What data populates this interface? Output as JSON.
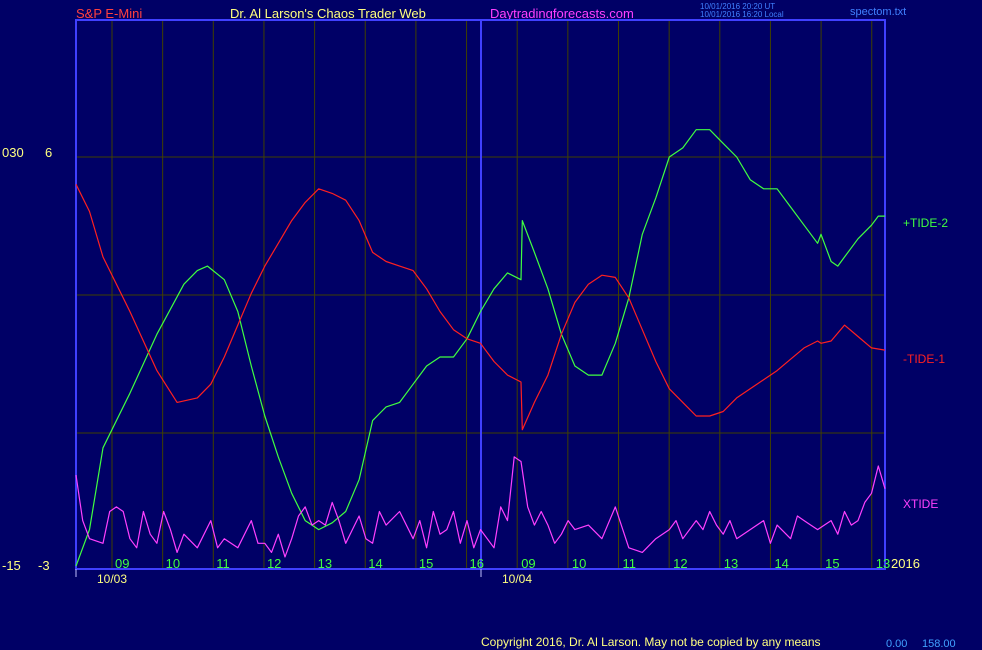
{
  "header": {
    "symbol": "S&P E-Mini",
    "title": "Dr. Al Larson's Chaos Trader Web",
    "site": "Daytradingforecasts.com",
    "update_line1": "10/01/2016 20:20 UT",
    "update_line2": "10/01/2016 16:20 Local",
    "filename": "spectom.txt"
  },
  "footer": {
    "copyright": "Copyright 2016, Dr. Al Larson. May not be copied by any means",
    "right_small": "0.00",
    "right_value": "158.00"
  },
  "colors": {
    "background": "#000066",
    "axis": "#4040ff",
    "grid": "#404000",
    "tide_plus2": "#40ff40",
    "tide_minus1": "#ff2020",
    "xtide": "#ff40ff",
    "tick_labels": "#40ff40",
    "axis_text": "#ffff80"
  },
  "chart_data": {
    "type": "line",
    "y_axis_left": {
      "labels": [
        {
          "outer": "030",
          "inner": "6"
        },
        {
          "outer": "-15",
          "inner": "-3"
        }
      ]
    },
    "x_axis": {
      "hour_ticks": [
        "09",
        "10",
        "11",
        "12",
        "13",
        "14",
        "15",
        "16",
        "09",
        "10",
        "11",
        "12",
        "13",
        "14",
        "15",
        "13"
      ],
      "date_labels": [
        "10/03",
        "10/04"
      ],
      "year_label": "2016"
    },
    "grid": true,
    "series": [
      {
        "name": "+TIDE-2",
        "color": "#40ff40",
        "points": [
          [
            0,
            -3
          ],
          [
            2,
            -2.2
          ],
          [
            4,
            -0.4
          ],
          [
            8,
            0.8
          ],
          [
            12,
            2.1
          ],
          [
            16,
            3.2
          ],
          [
            18,
            3.5
          ],
          [
            19.5,
            3.6
          ],
          [
            22,
            3.3
          ],
          [
            24,
            2.6
          ],
          [
            26,
            1.4
          ],
          [
            28,
            0.3
          ],
          [
            30,
            -0.6
          ],
          [
            32,
            -1.4
          ],
          [
            34,
            -2.0
          ],
          [
            36,
            -2.2
          ],
          [
            38,
            -2.05
          ],
          [
            40,
            -1.8
          ],
          [
            42,
            -1.1
          ],
          [
            44,
            0.2
          ],
          [
            46,
            0.5
          ],
          [
            48,
            0.6
          ],
          [
            50,
            1.0
          ],
          [
            52,
            1.4
          ],
          [
            54,
            1.6
          ],
          [
            56,
            1.6
          ],
          [
            58,
            2.0
          ],
          [
            60,
            2.6
          ],
          [
            62,
            3.1
          ],
          [
            64,
            3.45
          ],
          [
            66,
            3.3
          ],
          [
            66.2,
            4.6
          ],
          [
            68,
            3.9
          ],
          [
            70,
            3.1
          ],
          [
            72,
            2.1
          ],
          [
            74,
            1.4
          ],
          [
            76,
            1.2
          ],
          [
            78,
            1.2
          ],
          [
            80,
            1.9
          ],
          [
            82,
            2.9
          ],
          [
            84,
            4.3
          ],
          [
            86,
            5.1
          ],
          [
            88,
            6.0
          ],
          [
            90,
            6.2
          ],
          [
            92,
            6.6
          ],
          [
            94,
            6.6
          ],
          [
            96,
            6.3
          ],
          [
            98,
            6.0
          ],
          [
            100,
            5.5
          ],
          [
            102,
            5.3
          ],
          [
            104,
            5.3
          ],
          [
            106,
            4.9
          ],
          [
            108,
            4.5
          ],
          [
            110,
            4.1
          ],
          [
            110.5,
            4.3
          ],
          [
            112,
            3.7
          ],
          [
            113,
            3.6
          ],
          [
            114,
            3.8
          ],
          [
            116,
            4.2
          ],
          [
            118,
            4.5
          ],
          [
            119,
            4.7
          ],
          [
            120,
            4.7
          ]
        ]
      },
      {
        "name": "-TIDE-1",
        "color": "#ff2020",
        "points": [
          [
            0,
            5.4
          ],
          [
            2,
            4.8
          ],
          [
            4,
            3.8
          ],
          [
            8,
            2.6
          ],
          [
            12,
            1.3
          ],
          [
            15,
            0.6
          ],
          [
            18,
            0.7
          ],
          [
            20,
            1.0
          ],
          [
            22,
            1.6
          ],
          [
            24,
            2.3
          ],
          [
            26,
            3.0
          ],
          [
            28,
            3.6
          ],
          [
            30,
            4.1
          ],
          [
            32,
            4.6
          ],
          [
            34,
            5.0
          ],
          [
            36,
            5.3
          ],
          [
            38,
            5.2
          ],
          [
            40,
            5.05
          ],
          [
            42,
            4.6
          ],
          [
            44,
            3.9
          ],
          [
            46,
            3.7
          ],
          [
            48,
            3.6
          ],
          [
            50,
            3.5
          ],
          [
            52,
            3.1
          ],
          [
            54,
            2.6
          ],
          [
            56,
            2.2
          ],
          [
            58,
            2.0
          ],
          [
            60,
            1.9
          ],
          [
            62,
            1.5
          ],
          [
            64,
            1.2
          ],
          [
            66,
            1.05
          ],
          [
            66.2,
            0.0
          ],
          [
            68,
            0.6
          ],
          [
            70,
            1.2
          ],
          [
            72,
            2.1
          ],
          [
            74,
            2.8
          ],
          [
            76,
            3.2
          ],
          [
            78,
            3.4
          ],
          [
            80,
            3.35
          ],
          [
            82,
            2.9
          ],
          [
            84,
            2.2
          ],
          [
            86,
            1.5
          ],
          [
            88,
            0.9
          ],
          [
            90,
            0.6
          ],
          [
            92,
            0.3
          ],
          [
            94,
            0.3
          ],
          [
            96,
            0.4
          ],
          [
            98,
            0.7
          ],
          [
            100,
            0.9
          ],
          [
            102,
            1.1
          ],
          [
            104,
            1.3
          ],
          [
            106,
            1.55
          ],
          [
            108,
            1.8
          ],
          [
            110,
            1.95
          ],
          [
            110.5,
            1.9
          ],
          [
            112,
            1.95
          ],
          [
            114,
            2.3
          ],
          [
            116,
            2.05
          ],
          [
            118,
            1.8
          ],
          [
            120,
            1.75
          ]
        ]
      },
      {
        "name": "XTIDE",
        "color": "#ff40ff",
        "points": [
          [
            0,
            -1.0
          ],
          [
            1,
            -2.0
          ],
          [
            2,
            -2.4
          ],
          [
            4,
            -2.5
          ],
          [
            5,
            -1.8
          ],
          [
            6,
            -1.7
          ],
          [
            7,
            -1.8
          ],
          [
            8,
            -2.4
          ],
          [
            9,
            -2.6
          ],
          [
            10,
            -1.8
          ],
          [
            11,
            -2.3
          ],
          [
            12,
            -2.5
          ],
          [
            13,
            -1.8
          ],
          [
            14,
            -2.2
          ],
          [
            15,
            -2.7
          ],
          [
            16,
            -2.3
          ],
          [
            18,
            -2.6
          ],
          [
            20,
            -2.0
          ],
          [
            21,
            -2.6
          ],
          [
            22,
            -2.4
          ],
          [
            24,
            -2.6
          ],
          [
            26,
            -2.0
          ],
          [
            27,
            -2.5
          ],
          [
            28,
            -2.5
          ],
          [
            29,
            -2.7
          ],
          [
            30,
            -2.3
          ],
          [
            31,
            -2.8
          ],
          [
            32,
            -2.4
          ],
          [
            33,
            -1.9
          ],
          [
            34,
            -1.7
          ],
          [
            35,
            -2.1
          ],
          [
            36,
            -2.0
          ],
          [
            37,
            -2.1
          ],
          [
            38,
            -1.6
          ],
          [
            39,
            -2.0
          ],
          [
            40,
            -2.5
          ],
          [
            41,
            -2.2
          ],
          [
            42,
            -1.9
          ],
          [
            43,
            -2.4
          ],
          [
            44,
            -2.5
          ],
          [
            45,
            -1.8
          ],
          [
            46,
            -2.1
          ],
          [
            48,
            -1.8
          ],
          [
            50,
            -2.4
          ],
          [
            51,
            -2.0
          ],
          [
            52,
            -2.6
          ],
          [
            53,
            -1.8
          ],
          [
            54,
            -2.3
          ],
          [
            55,
            -2.2
          ],
          [
            56,
            -1.8
          ],
          [
            57,
            -2.5
          ],
          [
            58,
            -2.0
          ],
          [
            59,
            -2.6
          ],
          [
            60,
            -2.2
          ],
          [
            62,
            -2.6
          ],
          [
            63,
            -1.7
          ],
          [
            64,
            -2.0
          ],
          [
            65,
            -0.6
          ],
          [
            66,
            -0.7
          ],
          [
            67,
            -1.7
          ],
          [
            68,
            -2.1
          ],
          [
            69,
            -1.8
          ],
          [
            70,
            -2.1
          ],
          [
            71,
            -2.5
          ],
          [
            72,
            -2.3
          ],
          [
            73,
            -2.0
          ],
          [
            74,
            -2.2
          ],
          [
            76,
            -2.1
          ],
          [
            78,
            -2.4
          ],
          [
            80,
            -1.7
          ],
          [
            82,
            -2.6
          ],
          [
            84,
            -2.7
          ],
          [
            86,
            -2.4
          ],
          [
            88,
            -2.2
          ],
          [
            89,
            -2.0
          ],
          [
            90,
            -2.4
          ],
          [
            92,
            -2.0
          ],
          [
            93,
            -2.2
          ],
          [
            94,
            -1.8
          ],
          [
            95,
            -2.1
          ],
          [
            96,
            -2.3
          ],
          [
            97,
            -2.0
          ],
          [
            98,
            -2.4
          ],
          [
            100,
            -2.2
          ],
          [
            102,
            -2.0
          ],
          [
            103,
            -2.5
          ],
          [
            104,
            -2.1
          ],
          [
            106,
            -2.4
          ],
          [
            107,
            -1.9
          ],
          [
            108,
            -2.0
          ],
          [
            109,
            -2.1
          ],
          [
            110,
            -2.2
          ],
          [
            111,
            -2.1
          ],
          [
            112,
            -2.0
          ],
          [
            113,
            -2.3
          ],
          [
            114,
            -1.8
          ],
          [
            115,
            -2.1
          ],
          [
            116,
            -2.0
          ],
          [
            117,
            -1.6
          ],
          [
            118,
            -1.4
          ],
          [
            119,
            -0.8
          ],
          [
            120,
            -1.3
          ]
        ]
      }
    ]
  }
}
